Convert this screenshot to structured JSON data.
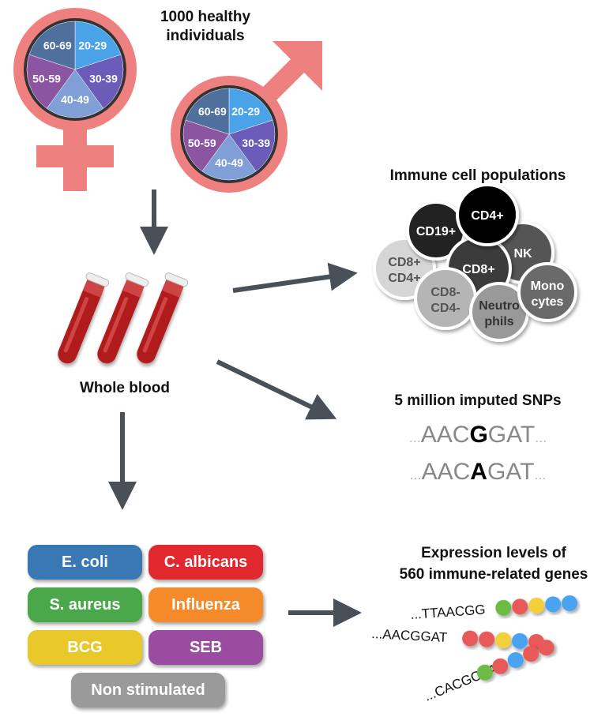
{
  "title": "1000 healthy individuals",
  "age_groups": [
    {
      "label": "20-29",
      "color": "#4aa3e8"
    },
    {
      "label": "30-39",
      "color": "#6a5cb8"
    },
    {
      "label": "40-49",
      "color": "#7f9fd6"
    },
    {
      "label": "50-59",
      "color": "#8c55a2"
    },
    {
      "label": "60-69",
      "color": "#4f6f9c"
    }
  ],
  "symbol_color": "#ee8080",
  "whole_blood": "Whole blood",
  "immune": {
    "title": "Immune cell populations",
    "cells": [
      {
        "label": "CD8+",
        "label2": "CD4+",
        "color": "#d6d6d6",
        "text": "#555"
      },
      {
        "label": "CD19+",
        "label2": "",
        "color": "#222",
        "text": "#fff"
      },
      {
        "label": "NK",
        "label2": "",
        "color": "#555",
        "text": "#fff"
      },
      {
        "label": "CD8+",
        "label2": "",
        "color": "#3a3a3a",
        "text": "#fff"
      },
      {
        "label": "CD4+",
        "label2": "",
        "color": "#000",
        "text": "#fff"
      },
      {
        "label": "CD8-",
        "label2": "CD4-",
        "color": "#b5b5b5",
        "text": "#555"
      },
      {
        "label": "Neutro",
        "label2": "phils",
        "color": "#999",
        "text": "#333"
      },
      {
        "label": "Mono",
        "label2": "cytes",
        "color": "#6b6b6b",
        "text": "#fff"
      }
    ]
  },
  "snps": {
    "title": "5 million imputed SNPs",
    "seq1": {
      "pre": "AAC",
      "alt": "G",
      "post": "GAT"
    },
    "seq2": {
      "pre": "AAC",
      "alt": "A",
      "post": "GAT"
    },
    "ellipsis": "..."
  },
  "stimuli": [
    {
      "label": "E. coli",
      "color": "#3a78b4"
    },
    {
      "label": "C. albicans",
      "color": "#e0282e"
    },
    {
      "label": "S. aureus",
      "color": "#4aa84a"
    },
    {
      "label": "Influenza",
      "color": "#f58a2a"
    },
    {
      "label": "BCG",
      "color": "#e8c82a"
    },
    {
      "label": "SEB",
      "color": "#9a4da0"
    },
    {
      "label": "Non stimulated",
      "color": "#9a9a9a"
    }
  ],
  "expression": {
    "title1": "Expression levels of",
    "title2": "560 immune-related genes",
    "seqs": [
      "...TTAACGG",
      "...AACGGAT",
      "...CACGCAA"
    ],
    "bead_colors": {
      "green": "#6cbb44",
      "red": "#e85a5a",
      "yellow": "#f3cf3a",
      "blue": "#4aa3f0"
    }
  }
}
